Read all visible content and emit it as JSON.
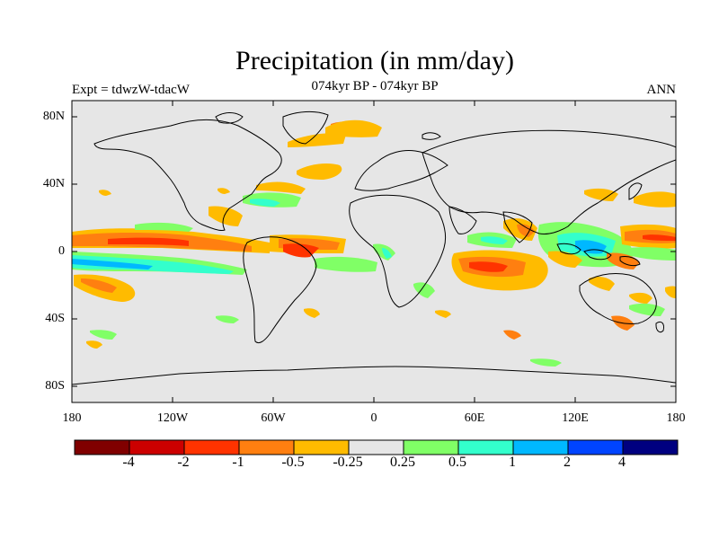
{
  "header": {
    "title": "Precipitation (in mm/day)",
    "left_label": "Expt = tdwzW-tdacW",
    "center_label": "074kyr BP - 074kyr BP",
    "right_label": "ANN"
  },
  "axes": {
    "lat_ticks": [
      "80N",
      "40N",
      "0",
      "40S",
      "80S"
    ],
    "lon_ticks": [
      "180",
      "120W",
      "60W",
      "0",
      "60E",
      "120E",
      "180"
    ]
  },
  "colorbar": {
    "colors": [
      "#800000",
      "#cc0000",
      "#ff3300",
      "#ff7f10",
      "#ffbb00",
      "#e6e6e6",
      "#80ff66",
      "#33ffcc",
      "#00b8ff",
      "#0044ff",
      "#000080"
    ],
    "labels": [
      "-4",
      "-2",
      "-1",
      "-0.5",
      "-0.25",
      "0.25",
      "0.5",
      "1",
      "2",
      "4"
    ]
  }
}
